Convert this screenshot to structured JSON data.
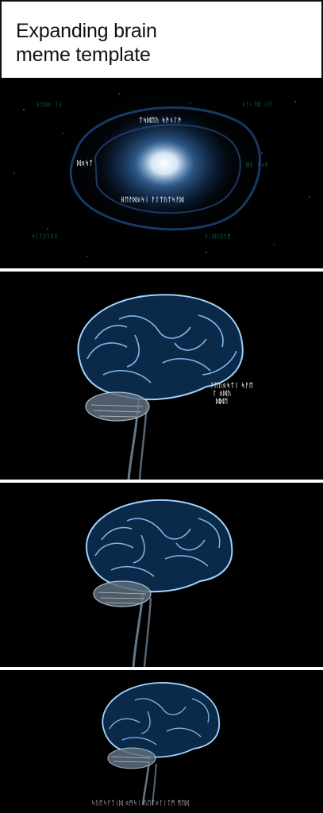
{
  "header": {
    "title_line1": "Expanding brain",
    "title_line2": "meme template"
  },
  "colors": {
    "background": "#000000",
    "brain_outline": "#9fd3ff",
    "brain_fill": "#0b2a4a",
    "galaxy_core": "#ffffff",
    "galaxy_glow": "#3a7fd0",
    "glyph_green": "#1f9d5a"
  },
  "panels": [
    {
      "name": "galaxy",
      "glyph_texts": [
        "ᛋᛏᛞᛟ ᛚᚱ",
        "ᛋᛏᛃᛏᛞ ᛚᛖ",
        "ᛏᛋᛞᛖᚢ ᛋᚫᚾᛚᚫ",
        "ᛞᛟᛋᛏ",
        "ᚺᛖᚨᛞᛟᛋᛁ ᚨᛚᛏᚢᛏᛋᚨᛞ",
        "ᛞᚱ ᚠᛟᛖ",
        "ᛋᛚᛏᚷᚨᚱᚷ",
        "ᛋᛁᛞᚷᛖᚢᛗ"
      ]
    },
    {
      "name": "brain-large",
      "side_text_line1": "ᛚᛖᚢᛟᛋᛏᛁ ᛋᚨᛖ",
      "side_text_line2": "ᛚ ᛟᛞᚢ",
      "side_text_line3": "ᛞᛞᛖ"
    },
    {
      "name": "brain-medium"
    },
    {
      "name": "brain-small",
      "caption": "ᛋᚢᛖᛋᚨᛏᛁᛞ ᛟᛗᛋᛁ ᚢᛖᛏᛟᛚᛁᛏᛗ ᛗᛖᛞ"
    }
  ]
}
